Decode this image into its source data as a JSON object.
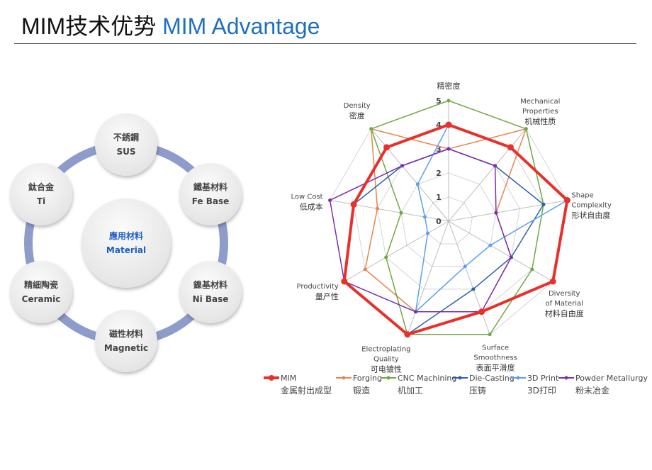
{
  "title": {
    "cn": "MIM技术优势",
    "en": "MIM Advantage"
  },
  "materials": {
    "center": {
      "cn": "應用材料",
      "en": "Material"
    },
    "items": [
      {
        "cn": "不銹鋼",
        "en": "SUS"
      },
      {
        "cn": "鐵基材料",
        "en": "Fe Base"
      },
      {
        "cn": "鎳基材料",
        "en": "Ni Base"
      },
      {
        "cn": "磁性材料",
        "en": "Magnetic"
      },
      {
        "cn": "精細陶瓷",
        "en": "Ceramic"
      },
      {
        "cn": "鈦合金",
        "en": "Ti"
      }
    ],
    "ring_color": "#8e9ccc"
  },
  "chart_data": {
    "type": "radar",
    "axes": [
      {
        "en": "",
        "cn": "精密度"
      },
      {
        "en": "Mechanical Properties",
        "cn": "机械性质"
      },
      {
        "en": "Shape Complexity",
        "cn": "形状自由度"
      },
      {
        "en": "Diversity of Material",
        "cn": "材料自由度"
      },
      {
        "en": "Surface Smoothness",
        "cn": "表面平滑度"
      },
      {
        "en": "Electroplating Quality",
        "cn": "可电镀性"
      },
      {
        "en": "Productivity",
        "cn": "量产性"
      },
      {
        "en": "Low Cost",
        "cn": "低成本"
      },
      {
        "en": "Density",
        "cn": "密度"
      }
    ],
    "rlim": [
      0,
      5
    ],
    "ticks": [
      "0",
      "1",
      "2",
      "3",
      "4",
      "5"
    ],
    "grid": true,
    "legend": "bottom",
    "series": [
      {
        "name": "MIM",
        "name_cn": "金属射出成型",
        "color": "#e8302a",
        "values": [
          4,
          4,
          5,
          5,
          4,
          5,
          5,
          4,
          4
        ]
      },
      {
        "name": "Forging",
        "name_cn": "锻造",
        "color": "#e8854a",
        "values": [
          3,
          5,
          2,
          3,
          4,
          4,
          4,
          3,
          5
        ]
      },
      {
        "name": "CNC Machining",
        "name_cn": "机加工",
        "color": "#70a845",
        "values": [
          5,
          5,
          4,
          4,
          5,
          5,
          3,
          2,
          5
        ]
      },
      {
        "name": "Die-Casting",
        "name_cn": "压铸",
        "color": "#2e5fae",
        "values": [
          3,
          3,
          4,
          3,
          3,
          5,
          5,
          4,
          3
        ]
      },
      {
        "name": "3D Print",
        "name_cn": "3D打印",
        "color": "#5b9ff0",
        "values": [
          4,
          4,
          5,
          2,
          2,
          4,
          1,
          1,
          2
        ]
      },
      {
        "name": "Powder Metallurgy",
        "name_cn": "粉末冶金",
        "color": "#7a2eb0",
        "values": [
          3,
          3,
          2,
          3,
          4,
          4,
          5,
          5,
          3
        ]
      }
    ]
  }
}
